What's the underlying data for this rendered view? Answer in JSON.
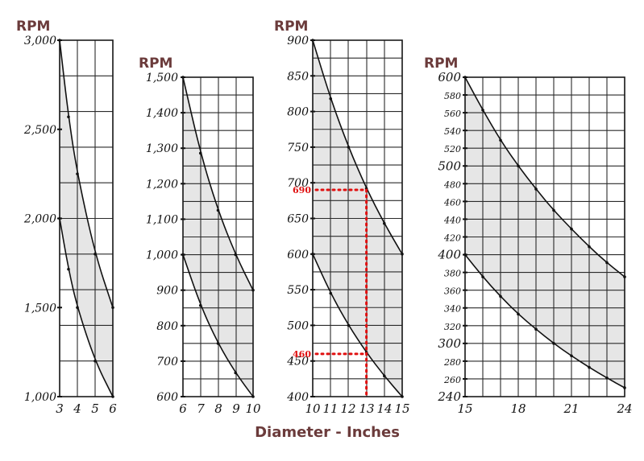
{
  "xlabel": "Diameter - Inches",
  "chart_data": [
    {
      "type": "area",
      "ylabel": "RPM",
      "xlim": [
        3,
        6
      ],
      "ylim": [
        1000,
        3000
      ],
      "xticks": [
        "3",
        "4",
        "5",
        "6"
      ],
      "yticks": [
        {
          "v": 3000,
          "t": "3,000"
        },
        {
          "v": 2500,
          "t": "2,500"
        },
        {
          "v": 2000,
          "t": "2,000"
        },
        {
          "v": 1500,
          "t": "1,500"
        },
        {
          "v": 1000,
          "t": "1,000"
        }
      ],
      "series": [
        {
          "x": [
            3,
            3.5,
            4,
            5,
            6
          ],
          "values": [
            3000,
            2570,
            2250,
            1800,
            1500
          ]
        },
        {
          "x": [
            3,
            3.5,
            4,
            5,
            6
          ],
          "values": [
            2000,
            1715,
            1500,
            1200,
            1000
          ]
        }
      ]
    },
    {
      "type": "area",
      "ylabel": "RPM",
      "xlim": [
        6,
        10
      ],
      "ylim": [
        600,
        1500
      ],
      "xticks": [
        "6",
        "7",
        "8",
        "9",
        "10"
      ],
      "yticks": [
        {
          "v": 1500,
          "t": "1,500"
        },
        {
          "v": 1400,
          "t": "1,400"
        },
        {
          "v": 1300,
          "t": "1,300"
        },
        {
          "v": 1200,
          "t": "1,200"
        },
        {
          "v": 1100,
          "t": "1,100"
        },
        {
          "v": 1000,
          "t": "1,000"
        },
        {
          "v": 900,
          "t": "900"
        },
        {
          "v": 800,
          "t": "800"
        },
        {
          "v": 700,
          "t": "700"
        },
        {
          "v": 600,
          "t": "600"
        }
      ],
      "series": [
        {
          "x": [
            6,
            7,
            8,
            9,
            10
          ],
          "values": [
            1500,
            1286,
            1125,
            1000,
            900
          ]
        },
        {
          "x": [
            6,
            7,
            8,
            9,
            10
          ],
          "values": [
            1000,
            857,
            750,
            667,
            600
          ]
        }
      ]
    },
    {
      "type": "area",
      "ylabel": "RPM",
      "xlim": [
        10,
        15
      ],
      "ylim": [
        400,
        900
      ],
      "xticks": [
        "10",
        "11",
        "12",
        "13",
        "14",
        "15"
      ],
      "yticks": [
        {
          "v": 900,
          "t": "900"
        },
        {
          "v": 850,
          "t": "850"
        },
        {
          "v": 800,
          "t": "800"
        },
        {
          "v": 750,
          "t": "750"
        },
        {
          "v": 700,
          "t": "700"
        },
        {
          "v": 650,
          "t": "650"
        },
        {
          "v": 600,
          "t": "600"
        },
        {
          "v": 550,
          "t": "550"
        },
        {
          "v": 500,
          "t": "500"
        },
        {
          "v": 450,
          "t": "450"
        },
        {
          "v": 400,
          "t": "400"
        }
      ],
      "series": [
        {
          "x": [
            10,
            11,
            12,
            13,
            14,
            15
          ],
          "values": [
            900,
            818,
            750,
            692,
            643,
            600
          ]
        },
        {
          "x": [
            10,
            11,
            12,
            13,
            14,
            15
          ],
          "values": [
            600,
            545,
            500,
            462,
            429,
            400
          ]
        }
      ],
      "annotations": [
        {
          "label": "690",
          "x": 13,
          "y": 690
        },
        {
          "label": "460",
          "x": 13,
          "y": 460
        }
      ]
    },
    {
      "type": "area",
      "ylabel": "RPM",
      "xlim": [
        15,
        24
      ],
      "ylim": [
        240,
        600
      ],
      "xticks": [
        "15",
        "18",
        "21",
        "24"
      ],
      "yticks": [
        {
          "v": 600,
          "t": "600",
          "big": true
        },
        {
          "v": 580,
          "t": "580"
        },
        {
          "v": 560,
          "t": "560"
        },
        {
          "v": 540,
          "t": "540"
        },
        {
          "v": 520,
          "t": "520"
        },
        {
          "v": 500,
          "t": "500",
          "big": true
        },
        {
          "v": 480,
          "t": "480"
        },
        {
          "v": 460,
          "t": "460"
        },
        {
          "v": 440,
          "t": "440"
        },
        {
          "v": 420,
          "t": "420"
        },
        {
          "v": 400,
          "t": "400",
          "big": true
        },
        {
          "v": 380,
          "t": "380"
        },
        {
          "v": 360,
          "t": "360"
        },
        {
          "v": 340,
          "t": "340"
        },
        {
          "v": 320,
          "t": "320"
        },
        {
          "v": 300,
          "t": "300",
          "big": true
        },
        {
          "v": 280,
          "t": "280"
        },
        {
          "v": 260,
          "t": "260"
        },
        {
          "v": 240,
          "t": "240",
          "big": true
        }
      ],
      "series": [
        {
          "x": [
            15,
            16,
            17,
            18,
            19,
            20,
            21,
            22,
            23,
            24
          ],
          "values": [
            600,
            563,
            529,
            500,
            474,
            450,
            429,
            409,
            391,
            375
          ]
        },
        {
          "x": [
            15,
            16,
            17,
            18,
            19,
            20,
            21,
            22,
            23,
            24
          ],
          "values": [
            400,
            375,
            353,
            333,
            316,
            300,
            286,
            273,
            261,
            250
          ]
        }
      ]
    }
  ]
}
